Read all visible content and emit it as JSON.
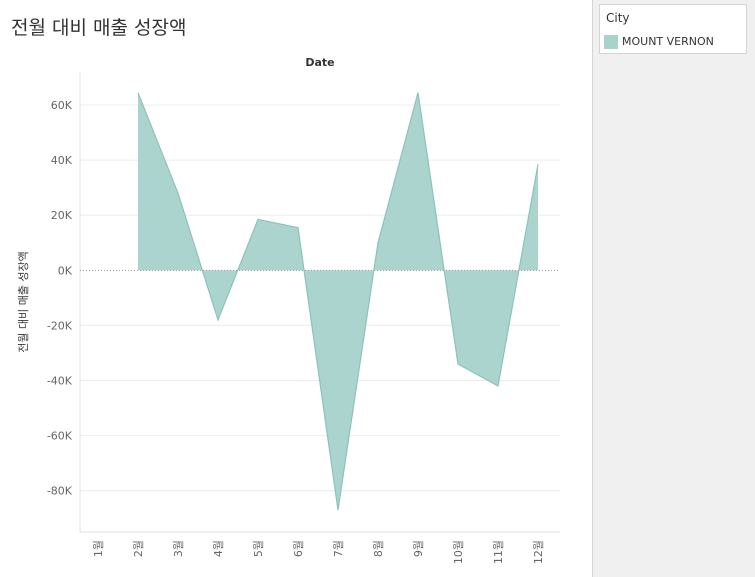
{
  "sheet": {
    "title": "전월 대비 매출 성장액"
  },
  "legend": {
    "title": "City",
    "items": [
      {
        "label": "MOUNT VERNON",
        "color": "#a8d2cc"
      }
    ]
  },
  "chart_data": {
    "type": "area",
    "title": "전월 대비 매출 성장액",
    "column_header": "Date",
    "ylabel": "전월 대비 매출 성장액",
    "xlabel": "",
    "categories": [
      "1월",
      "2월",
      "3월",
      "4월",
      "5월",
      "6월",
      "7월",
      "8월",
      "9월",
      "10월",
      "11월",
      "12월"
    ],
    "series": [
      {
        "name": "MOUNT VERNON",
        "color": "#a8d2cc",
        "stroke": "#8cc2ba",
        "values": [
          null,
          64500,
          28000,
          -18000,
          18500,
          15500,
          -87000,
          10000,
          64500,
          -34000,
          -42000,
          38500
        ]
      }
    ],
    "ylim": [
      -95000,
      72000
    ],
    "yticks": [
      60000,
      40000,
      20000,
      0,
      -20000,
      -40000,
      -60000,
      -80000
    ],
    "ytick_labels": [
      "60K",
      "40K",
      "20K",
      "0K",
      "-20K",
      "-40K",
      "-60K",
      "-80K"
    ],
    "grid": true,
    "zero_line": "dotted",
    "legend_position": "right"
  }
}
